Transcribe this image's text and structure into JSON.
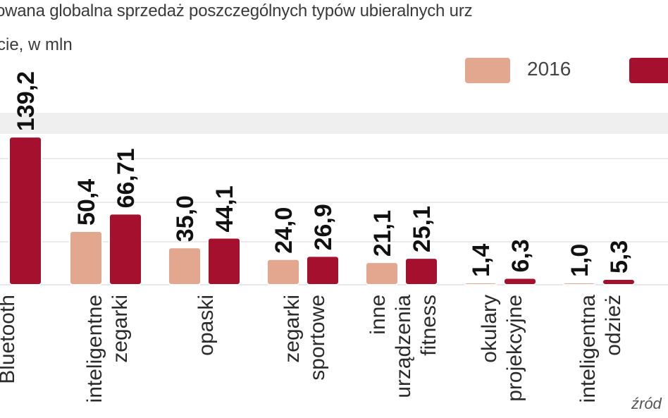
{
  "title": "owana globalna sprzedaż poszczególnych typów ubieralnych urz",
  "subtitle": "cie, w mln",
  "source": "źród",
  "colors": {
    "s2016": "#e3a68f",
    "s2017": "#a6102f",
    "band": "#efefef",
    "grid": "#d6d6d6"
  },
  "chart_data": {
    "type": "bar",
    "categories": [
      "Bluetooth",
      "inteligentne zegarki",
      "opaski",
      "zegarki sportowe",
      "inne urządzenia fitness",
      "okulary projekcyjne",
      "inteligentna odzież"
    ],
    "category_lines": [
      [
        "Bluetooth"
      ],
      [
        "inteligentne",
        "zegarki"
      ],
      [
        "opaski"
      ],
      [
        "zegarki",
        "sportowe"
      ],
      [
        "inne",
        "urządzenia",
        "fitness"
      ],
      [
        "okulary",
        "projekcyjne"
      ],
      [
        "inteligentna",
        "odzież"
      ]
    ],
    "series": [
      {
        "name": "2016",
        "values": [
          null,
          50.4,
          35.0,
          24.0,
          21.1,
          1.4,
          1.0
        ],
        "labels": [
          "",
          "50,4",
          "35,0",
          "24,0",
          "21,1",
          "1,4",
          "1,0"
        ]
      },
      {
        "name": "",
        "values": [
          139.2,
          66.71,
          44.1,
          26.9,
          25.1,
          6.3,
          5.3
        ],
        "labels": [
          "139,2",
          "66,71",
          "44,1",
          "26,9",
          "25,1",
          "6,3",
          "5,3"
        ]
      }
    ],
    "legend": [
      "2016"
    ],
    "ylim": [
      0,
      150
    ],
    "grid": true,
    "legend_position": "top-right"
  }
}
